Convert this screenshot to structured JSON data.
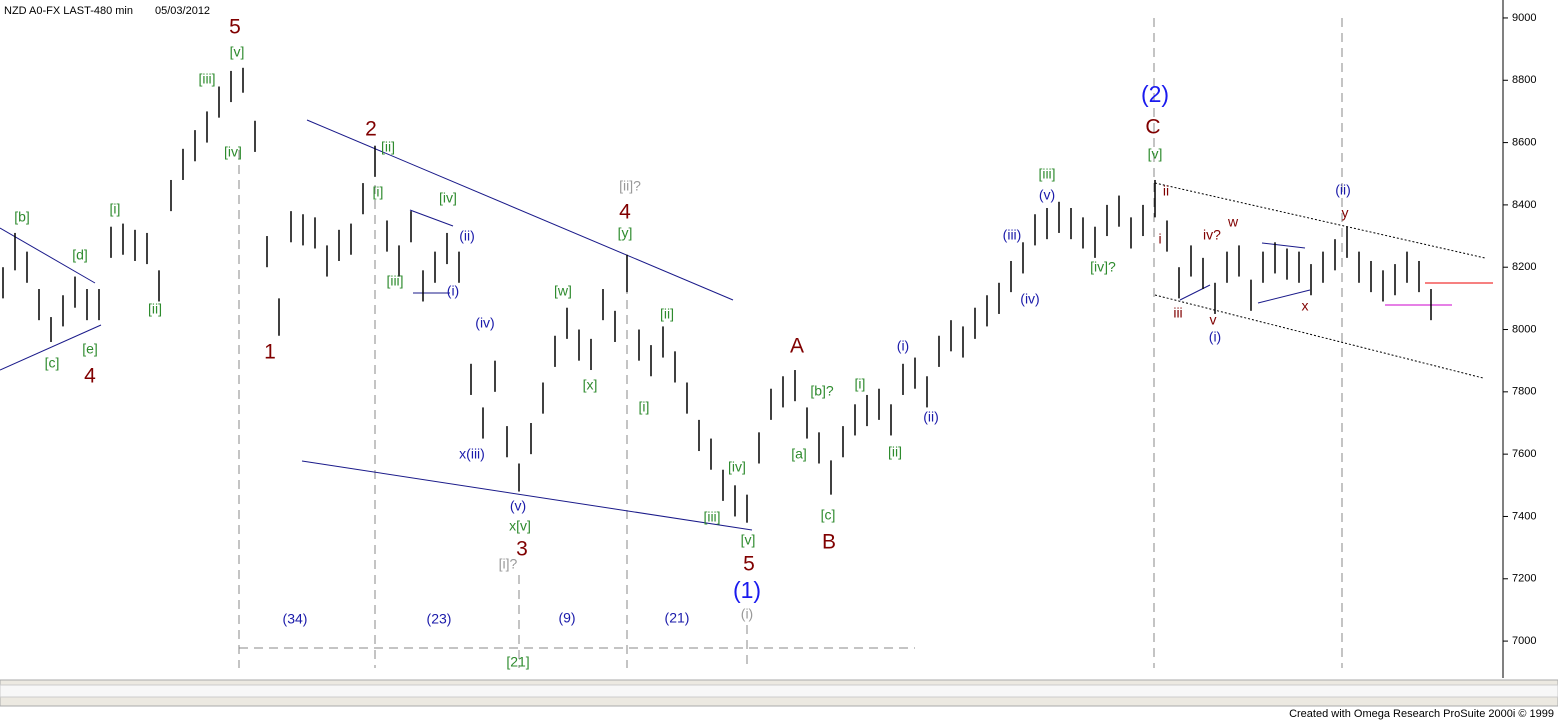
{
  "header": {
    "symbol": "NZD A0-FX LAST-480 min",
    "date": "05/03/2012"
  },
  "footer": "Created with Omega Research ProSuite 2000i © 1999",
  "chart_data": {
    "type": "ohlc",
    "series": [
      {
        "name": "high",
        "color": "#000000",
        "values": [
          8200,
          8310,
          8250,
          8130,
          8040,
          8110,
          8170,
          8130,
          8130,
          8330,
          8340,
          8320,
          8310,
          8190,
          8480,
          8580,
          8640,
          8700,
          8780,
          8830,
          8840,
          8670,
          8300,
          8100,
          8380,
          8370,
          8360,
          8270,
          8320,
          8340,
          8470,
          8590,
          8350,
          8270,
          8380,
          8190,
          8250,
          8310,
          8250,
          7890,
          7750,
          7900,
          7690,
          7570,
          7700,
          7830,
          7980,
          8070,
          8000,
          7970,
          8130,
          8060,
          8240,
          8000,
          7950,
          8010,
          7930,
          7830,
          7710,
          7650,
          7550,
          7500,
          7470,
          7670,
          7810,
          7850,
          7870,
          7750,
          7670,
          7580,
          7690,
          7760,
          7790,
          7810,
          7760,
          7890,
          7910,
          7850,
          7980,
          8030,
          8010,
          8070,
          8110,
          8150,
          8220,
          8280,
          8370,
          8390,
          8410,
          8390,
          8360,
          8330,
          8400,
          8430,
          8360,
          8400,
          8480,
          8350,
          8200,
          8270,
          8230,
          8150,
          8250,
          8270,
          8160,
          8250,
          8280,
          8260,
          8250,
          8210,
          8250,
          8290,
          8330,
          8250,
          8220,
          8190,
          8210,
          8250,
          8220,
          8130
        ]
      },
      {
        "name": "low",
        "color": "#000000",
        "values": [
          8100,
          8190,
          8150,
          8030,
          7960,
          8010,
          8070,
          8030,
          8030,
          8230,
          8240,
          8220,
          8210,
          8090,
          8380,
          8480,
          8540,
          8600,
          8680,
          8730,
          8760,
          8570,
          8200,
          7980,
          8280,
          8270,
          8260,
          8170,
          8220,
          8240,
          8370,
          8490,
          8250,
          8170,
          8280,
          8090,
          8150,
          8210,
          8150,
          7790,
          7650,
          7800,
          7590,
          7480,
          7600,
          7730,
          7880,
          7970,
          7900,
          7870,
          8030,
          7960,
          8120,
          7900,
          7850,
          7910,
          7830,
          7730,
          7610,
          7550,
          7450,
          7400,
          7380,
          7570,
          7710,
          7750,
          7770,
          7650,
          7570,
          7470,
          7590,
          7660,
          7690,
          7710,
          7660,
          7790,
          7810,
          7750,
          7880,
          7930,
          7910,
          7970,
          8010,
          8050,
          8120,
          8180,
          8270,
          8290,
          8310,
          8290,
          8260,
          8230,
          8300,
          8330,
          8260,
          8300,
          8360,
          8250,
          8100,
          8170,
          8130,
          8050,
          8150,
          8170,
          8060,
          8150,
          8180,
          8160,
          8150,
          8110,
          8150,
          8190,
          8230,
          8150,
          8120,
          8090,
          8110,
          8150,
          8120,
          8030
        ]
      }
    ],
    "ylim": [
      6904,
      9048
    ],
    "yticks": [
      7000,
      7200,
      7400,
      7600,
      7800,
      8000,
      8200,
      8400,
      8600,
      8800,
      9000
    ],
    "annotations": [
      {
        "text": "5",
        "color": "#800000"
      },
      {
        "text": "[v]",
        "color": "#2e8b2e"
      },
      {
        "text": "[iii]",
        "color": "#2e8b2e"
      },
      {
        "text": "[iv]",
        "color": "#2e8b2e"
      },
      {
        "text": "[b]",
        "color": "#2e8b2e"
      },
      {
        "text": "[d]",
        "color": "#2e8b2e"
      },
      {
        "text": "[c]",
        "color": "#2e8b2e"
      },
      {
        "text": "[e]",
        "color": "#2e8b2e"
      },
      {
        "text": "4",
        "color": "#800000"
      },
      {
        "text": "[i]",
        "color": "#2e8b2e"
      },
      {
        "text": "[ii]",
        "color": "#2e8b2e"
      },
      {
        "text": "1",
        "color": "#800000"
      },
      {
        "text": "2",
        "color": "#800000"
      },
      {
        "text": "[ii]",
        "color": "#2e8b2e"
      },
      {
        "text": "[i]",
        "color": "#2e8b2e"
      },
      {
        "text": "[iv]",
        "color": "#2e8b2e"
      },
      {
        "text": "(ii)",
        "color": "#1a1aaa"
      },
      {
        "text": "[iii]",
        "color": "#2e8b2e"
      },
      {
        "text": "(i)",
        "color": "#1a1aaa"
      },
      {
        "text": "(iv)",
        "color": "#1a1aaa"
      },
      {
        "text": "x(iii)",
        "color": "#1a1aaa"
      },
      {
        "text": "(v)",
        "color": "#1a1aaa"
      },
      {
        "text": "x[v]",
        "color": "#2e8b2e"
      },
      {
        "text": "3",
        "color": "#800000"
      },
      {
        "text": "[i]?",
        "color": "#999999"
      },
      {
        "text": "[ii]?",
        "color": "#999999"
      },
      {
        "text": "4",
        "color": "#800000"
      },
      {
        "text": "[y]",
        "color": "#2e8b2e"
      },
      {
        "text": "[w]",
        "color": "#2e8b2e"
      },
      {
        "text": "[x]",
        "color": "#2e8b2e"
      },
      {
        "text": "[ii]",
        "color": "#2e8b2e"
      },
      {
        "text": "[i]",
        "color": "#2e8b2e"
      },
      {
        "text": "[iv]",
        "color": "#2e8b2e"
      },
      {
        "text": "[iii]",
        "color": "#2e8b2e"
      },
      {
        "text": "[v]",
        "color": "#2e8b2e"
      },
      {
        "text": "5",
        "color": "#800000"
      },
      {
        "text": "(1)",
        "color": "#1a1aee"
      },
      {
        "text": "(i)",
        "color": "#999999"
      },
      {
        "text": "A",
        "color": "#800000"
      },
      {
        "text": "[b]?",
        "color": "#2e8b2e"
      },
      {
        "text": "[a]",
        "color": "#2e8b2e"
      },
      {
        "text": "[c]",
        "color": "#2e8b2e"
      },
      {
        "text": "B",
        "color": "#800000"
      },
      {
        "text": "(i)",
        "color": "#1a1aaa"
      },
      {
        "text": "[i]",
        "color": "#2e8b2e"
      },
      {
        "text": "(ii)",
        "color": "#1a1aaa"
      },
      {
        "text": "[ii]",
        "color": "#2e8b2e"
      },
      {
        "text": "(iii)",
        "color": "#1a1aaa"
      },
      {
        "text": "(iv)",
        "color": "#1a1aaa"
      },
      {
        "text": "(v)",
        "color": "#1a1aaa"
      },
      {
        "text": "[iii]",
        "color": "#2e8b2e"
      },
      {
        "text": "[iv]?",
        "color": "#2e8b2e"
      },
      {
        "text": "(2)",
        "color": "#1a1aee"
      },
      {
        "text": "C",
        "color": "#800000"
      },
      {
        "text": "[v]",
        "color": "#2e8b2e"
      },
      {
        "text": "ii",
        "color": "#800000"
      },
      {
        "text": "i",
        "color": "#800000"
      },
      {
        "text": "iii",
        "color": "#800000"
      },
      {
        "text": "iv?",
        "color": "#800000"
      },
      {
        "text": "w",
        "color": "#800000"
      },
      {
        "text": "v",
        "color": "#800000"
      },
      {
        "text": "(i)",
        "color": "#1a1aaa"
      },
      {
        "text": "x",
        "color": "#800000"
      },
      {
        "text": "(ii)",
        "color": "#1a1aaa"
      },
      {
        "text": "y",
        "color": "#800000"
      },
      {
        "text": "(34)",
        "color": "#1a1aaa"
      },
      {
        "text": "(23)",
        "color": "#1a1aaa"
      },
      {
        "text": "(9)",
        "color": "#1a1aaa"
      },
      {
        "text": "(21)",
        "color": "#1a1aaa"
      },
      {
        "text": "[21]",
        "color": "#2e8b2e"
      }
    ]
  }
}
